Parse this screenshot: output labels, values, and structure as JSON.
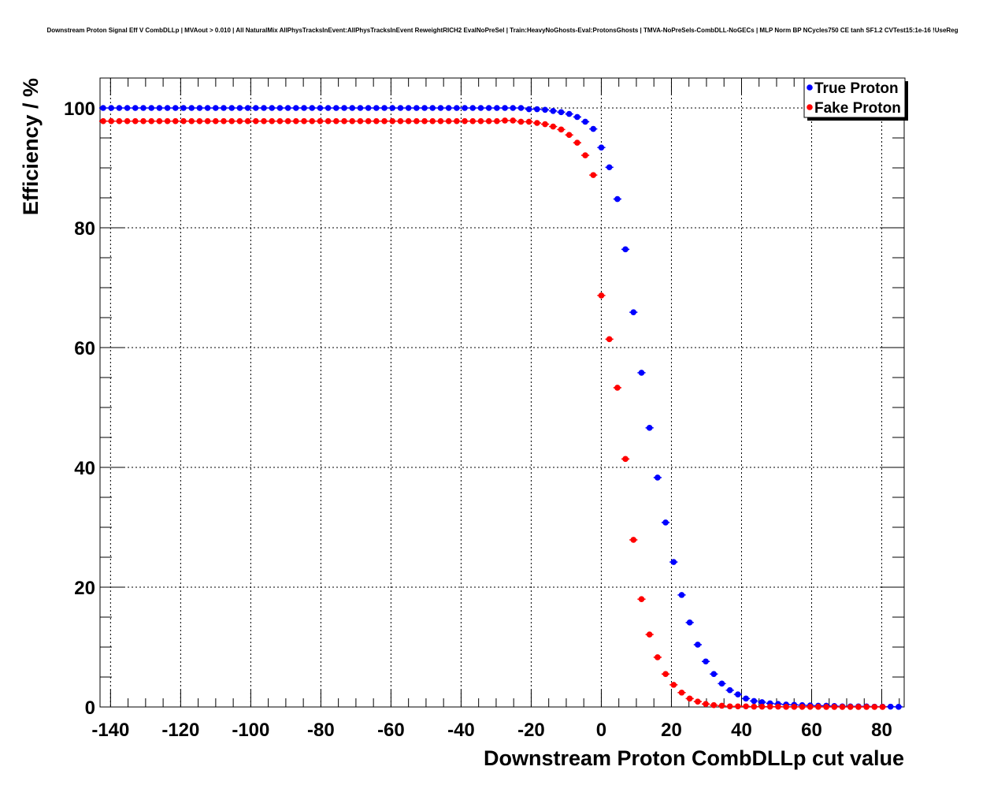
{
  "chart_data": {
    "type": "scatter",
    "title": "Downstream Proton Signal Eff V CombDLLp | MVAout > 0.010 | All NaturalMix AllPhysTracksInEvent:AllPhysTracksInEvent ReweightRICH2 EvalNoPreSel | Train:HeavyNoGhosts-Eval:ProtonsGhosts | TMVA-NoPreSels-CombDLL-NoGECs | MLP Norm BP NCycles750 CE tanh SF1.2 CVTest15:1e-16 !UseReg",
    "xlabel": "Downstream Proton CombDLLp cut value",
    "ylabel": "Efficiency / %",
    "xlim": [
      -143.0,
      86.4
    ],
    "ylim": [
      0,
      105
    ],
    "x_start": -142.1,
    "x_step": 2.292,
    "x_ticks": [
      -140,
      -120,
      -100,
      -80,
      -60,
      -40,
      -20,
      0,
      20,
      40,
      60,
      80
    ],
    "y_ticks": [
      0,
      20,
      40,
      60,
      80,
      100
    ],
    "grid": true,
    "legend_position": "top-right",
    "series": [
      {
        "name": "True Proton",
        "color": "#0000ff",
        "values": [
          100,
          100,
          100,
          100,
          100,
          100,
          100,
          100,
          100,
          100,
          100,
          100,
          100,
          100,
          100,
          100,
          100,
          100,
          100,
          100,
          100,
          100,
          100,
          100,
          100,
          100,
          100,
          100,
          100,
          100,
          100,
          100,
          100,
          100,
          100,
          100,
          100,
          100,
          100,
          100,
          100,
          100,
          100,
          100,
          100,
          100,
          100,
          100,
          100,
          100,
          100,
          100,
          100,
          99.8,
          99.8,
          99.7,
          99.5,
          99.3,
          99.0,
          98.5,
          97.7,
          96.5,
          93.4,
          90.1,
          84.8,
          76.4,
          65.9,
          55.8,
          46.6,
          38.3,
          30.8,
          24.2,
          18.7,
          14.1,
          10.4,
          7.6,
          5.5,
          3.9,
          2.8,
          2.1,
          1.4,
          1.0,
          0.8,
          0.6,
          0.5,
          0.4,
          0.35,
          0.3,
          0.25,
          0.2,
          0.2,
          0.15,
          0.1,
          0.1,
          0.1,
          0.1,
          0.05,
          0.05,
          0.05,
          0.02
        ]
      },
      {
        "name": "Fake Proton",
        "color": "#ff0000",
        "values": [
          97.8,
          97.8,
          97.8,
          97.8,
          97.8,
          97.8,
          97.8,
          97.8,
          97.8,
          97.8,
          97.8,
          97.8,
          97.8,
          97.8,
          97.8,
          97.8,
          97.8,
          97.8,
          97.8,
          97.8,
          97.8,
          97.8,
          97.8,
          97.8,
          97.8,
          97.8,
          97.8,
          97.8,
          97.8,
          97.8,
          97.8,
          97.8,
          97.8,
          97.8,
          97.8,
          97.8,
          97.8,
          97.8,
          97.8,
          97.8,
          97.8,
          97.8,
          97.8,
          97.8,
          97.8,
          97.8,
          97.8,
          97.8,
          97.8,
          97.8,
          97.9,
          97.9,
          97.7,
          97.7,
          97.5,
          97.3,
          96.9,
          96.4,
          95.5,
          94.2,
          92.1,
          88.8,
          68.7,
          61.4,
          53.3,
          41.4,
          27.9,
          18.0,
          12.1,
          8.3,
          5.5,
          3.7,
          2.4,
          1.4,
          0.9,
          0.5,
          0.3,
          0.2,
          0.1,
          0.1,
          0.1,
          0.05,
          0.05,
          0.05,
          0.05,
          0.02,
          0.02,
          0.02,
          0.02,
          0.02,
          0.01,
          0.01,
          0.01,
          0.01,
          0.01,
          0.01,
          0.01,
          0.01
        ]
      }
    ]
  }
}
